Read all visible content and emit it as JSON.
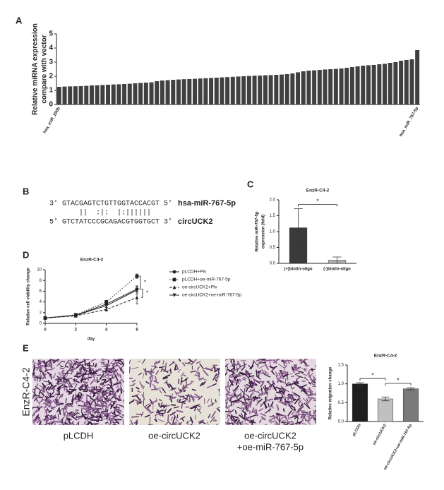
{
  "panels": [
    "A",
    "B",
    "C",
    "D",
    "E"
  ],
  "sequence": {
    "mirna": "3' GTACGAGTCTGTTGGTACCACGT 5'",
    "mirna_name": "hsa-miR-767-5p",
    "pairing": "||  :|:  |:||||||",
    "target": "5' GTCTATCCCGCAGACGTGGTGCT 3'",
    "target_name": "circUCK2"
  },
  "images": {
    "row_label": "EnzR-C4-2",
    "captions": [
      "pLCDH",
      "oe-circUCK2",
      "oe-circUCK2",
      "+oe-miR-767-5p"
    ]
  },
  "chart_data": [
    {
      "type": "bar",
      "ylabel": [
        "Relative miRNA expression",
        "compare with vector"
      ],
      "categories": [
        "hsa_miR_200b",
        null,
        null,
        null,
        null,
        null,
        null,
        null,
        null,
        null,
        null,
        null,
        null,
        null,
        null,
        null,
        null,
        null,
        null,
        null,
        null,
        null,
        null,
        null,
        null,
        null,
        null,
        null,
        null,
        null,
        null,
        null,
        null,
        null,
        null,
        null,
        null,
        null,
        null,
        null,
        null,
        null,
        null,
        null,
        null,
        null,
        null,
        null,
        null,
        null,
        null,
        null,
        null,
        null,
        null,
        null,
        null,
        null,
        null,
        null,
        null,
        null,
        null,
        null,
        null,
        null,
        "hsa_miR_767-5p"
      ],
      "values": [
        1.25,
        1.27,
        1.28,
        1.29,
        1.3,
        1.32,
        1.35,
        1.36,
        1.38,
        1.4,
        1.42,
        1.43,
        1.45,
        1.47,
        1.5,
        1.53,
        1.55,
        1.57,
        1.65,
        1.7,
        1.72,
        1.75,
        1.77,
        1.79,
        1.8,
        1.82,
        1.84,
        1.86,
        1.88,
        1.9,
        1.92,
        1.94,
        1.96,
        1.98,
        2.0,
        2.02,
        2.04,
        2.05,
        2.07,
        2.08,
        2.1,
        2.12,
        2.15,
        2.2,
        2.28,
        2.35,
        2.4,
        2.42,
        2.45,
        2.48,
        2.5,
        2.52,
        2.55,
        2.6,
        2.65,
        2.7,
        2.75,
        2.78,
        2.8,
        2.85,
        2.88,
        2.95,
        3.0,
        3.1,
        3.15,
        3.2,
        3.85
      ],
      "color": "#404040",
      "ylim": [
        0,
        5
      ],
      "yticks": [
        0,
        1,
        2,
        3,
        4,
        5
      ]
    },
    {
      "type": "bar",
      "title": "EnzR-C4-2",
      "ylabel": [
        "Relative miR-767-5p",
        "expression (fold)"
      ],
      "categories": [
        "(+)biotin-oligo",
        "(-)biotin-oligo"
      ],
      "values": [
        1.12,
        0.1
      ],
      "errors": [
        0.6,
        0.1
      ],
      "colors": [
        "#3a3a3a",
        "#b0b0b0"
      ],
      "ylim": [
        0,
        2
      ],
      "yticks": [
        {
          "value": 0,
          "label": "0.0"
        },
        {
          "value": 0.5,
          "label": "0.5"
        },
        {
          "value": 1,
          "label": "1.0"
        },
        {
          "value": 1.5,
          "label": "1.5"
        },
        {
          "value": 2,
          "label": "2.0"
        }
      ],
      "annotations": [
        "*"
      ]
    },
    {
      "type": "line",
      "title": "EnzR-C4-2",
      "xlabel": "day",
      "ylabel": "Relative cell viability change",
      "x": [
        0,
        2,
        4,
        6
      ],
      "xlim": [
        0,
        6
      ],
      "xticks": [
        0,
        2,
        4,
        6
      ],
      "ylim": [
        0,
        10
      ],
      "yticks": [
        0,
        2,
        4,
        6,
        8,
        10
      ],
      "series": [
        {
          "name": "pLCDH+Plv",
          "color": "#222222",
          "dash": "solid",
          "marker": "circle",
          "values": [
            1,
            1.5,
            3.6,
            6.4
          ],
          "errors": [
            0.1,
            0.2,
            0.3,
            0.6
          ]
        },
        {
          "name": "pLCDH+oe-miR-767-5p",
          "color": "#222222",
          "dash": "dotted",
          "marker": "square",
          "values": [
            1,
            1.6,
            4.0,
            8.8
          ],
          "errors": [
            0.1,
            0.2,
            0.3,
            0.4
          ]
        },
        {
          "name": "oe-circUCK2+Plv",
          "color": "#222222",
          "dash": "dashed",
          "marker": "triangle",
          "values": [
            1,
            1.4,
            2.6,
            4.8
          ],
          "errors": [
            0.1,
            0.2,
            0.3,
            1.2
          ]
        },
        {
          "name": "oe-circUCK2+oe-miR-767-5p",
          "color": "#222222",
          "dash": "solid",
          "marker": "triangle-down",
          "values": [
            1,
            1.5,
            3.3,
            6.2
          ],
          "errors": [
            0.1,
            0.2,
            0.3,
            0.7
          ]
        }
      ],
      "annotations": [
        "*",
        "*"
      ]
    },
    {
      "type": "bar",
      "title": "EnzR-C4-2",
      "ylabel": "Relative migration change",
      "categories": [
        "pLCDH",
        "oe-circUCK2",
        "oe-circUCK2+oe-miR-767-5p"
      ],
      "values": [
        1.0,
        0.6,
        0.87
      ],
      "errors": [
        0.03,
        0.05,
        0.03
      ],
      "colors": [
        "#1e1e1e",
        "#c0c0c0",
        "#7a7a7a"
      ],
      "ylim": [
        0,
        1.5
      ],
      "yticks": [
        {
          "value": 0,
          "label": "0.0"
        },
        {
          "value": 0.5,
          "label": "0.5"
        },
        {
          "value": 1,
          "label": "1.0"
        },
        {
          "value": 1.5,
          "label": "1.5"
        }
      ],
      "annotations": [
        "*",
        "*"
      ]
    }
  ]
}
